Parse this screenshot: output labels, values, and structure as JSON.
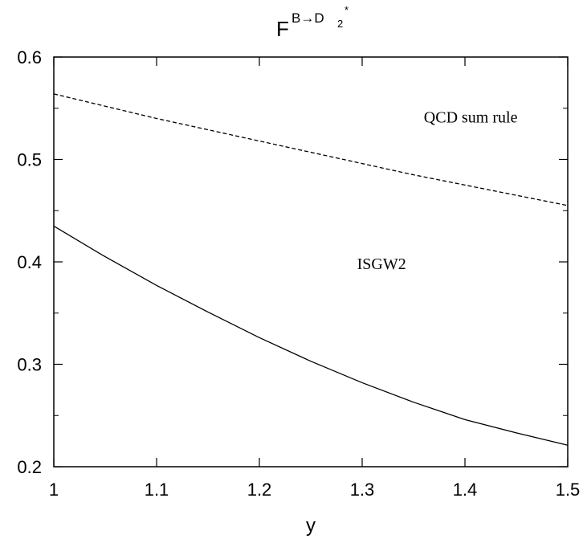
{
  "chart_data": {
    "type": "line",
    "title": {
      "main": "F",
      "superscript": "B→D",
      "subscript": "2",
      "star": "*"
    },
    "xlabel": "y",
    "ylabel": "",
    "xlim": [
      1,
      1.5
    ],
    "ylim": [
      0.2,
      0.6
    ],
    "x_ticks": [
      "1",
      "1.1",
      "1.2",
      "1.3",
      "1.4",
      "1.5"
    ],
    "y_ticks": [
      "0.2",
      "0.3",
      "0.4",
      "0.5",
      "0.6"
    ],
    "grid": false,
    "series": [
      {
        "name": "QCD sum rule",
        "style": "dashed",
        "color": "#000000",
        "x": [
          1.0,
          1.05,
          1.1,
          1.15,
          1.2,
          1.25,
          1.3,
          1.35,
          1.4,
          1.45,
          1.5
        ],
        "y": [
          0.564,
          0.552,
          0.54,
          0.529,
          0.518,
          0.507,
          0.496,
          0.485,
          0.475,
          0.465,
          0.455
        ]
      },
      {
        "name": "ISGW2",
        "style": "solid",
        "color": "#000000",
        "x": [
          1.0,
          1.05,
          1.1,
          1.15,
          1.2,
          1.25,
          1.3,
          1.35,
          1.4,
          1.45,
          1.5
        ],
        "y": [
          0.435,
          0.405,
          0.377,
          0.351,
          0.326,
          0.303,
          0.282,
          0.263,
          0.246,
          0.233,
          0.221
        ]
      }
    ],
    "annotations": [
      {
        "text": "QCD sum rule",
        "x": 1.36,
        "y": 0.536
      },
      {
        "text": "ISGW2",
        "x": 1.295,
        "y": 0.393
      }
    ]
  }
}
